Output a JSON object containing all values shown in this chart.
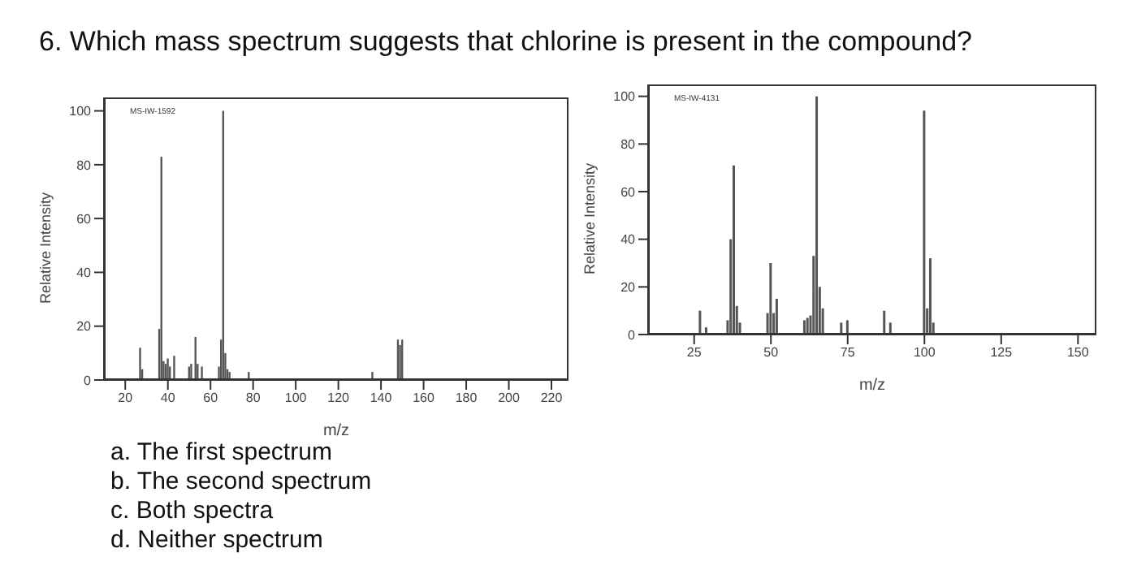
{
  "chart_data": [
    {
      "type": "bar",
      "title": "6. Which mass spectrum suggests that chlorine is present in the compound?",
      "xlabel": "m/z",
      "ylabel": "Relative Intensity",
      "annotations": [
        "MS-IW-1592",
        "a. The first spectrum",
        "b. The second spectrum",
        "c. Both spectra",
        "d. Neither spectrum"
      ],
      "x": [
        27,
        28,
        36,
        37,
        38,
        39,
        40,
        41,
        43,
        50,
        51,
        53,
        54,
        56,
        64,
        65,
        66,
        67,
        68,
        69,
        78,
        136,
        148,
        149,
        150
      ],
      "series": [
        {
          "color": "#555555",
          "values": [
            12,
            4,
            19,
            83,
            7,
            6,
            8,
            5,
            9,
            5,
            6,
            16,
            6,
            5,
            5,
            15,
            100,
            10,
            4,
            3,
            3,
            3,
            15,
            13,
            15
          ]
        }
      ],
      "xlim": [
        10,
        228
      ],
      "xticks": [
        20,
        40,
        60,
        80,
        100,
        120,
        140,
        160,
        180,
        200,
        220
      ],
      "ylim": [
        0,
        105
      ],
      "yticks": [
        0,
        20,
        40,
        60,
        80,
        100
      ],
      "grid": false
    },
    {
      "type": "bar",
      "xlabel": "m/z",
      "ylabel": "Relative Intensity",
      "annotations": [
        "MS-IW-4131"
      ],
      "x": [
        27,
        29,
        36,
        37,
        38,
        39,
        40,
        49,
        50,
        51,
        52,
        61,
        62,
        63,
        64,
        65,
        66,
        67,
        73,
        75,
        87,
        89,
        100,
        101,
        102,
        103
      ],
      "series": [
        {
          "color": "#555555",
          "values": [
            10,
            3,
            6,
            40,
            71,
            12,
            5,
            9,
            30,
            9,
            15,
            6,
            7,
            8,
            33,
            100,
            20,
            11,
            5,
            6,
            10,
            5,
            94,
            11,
            32,
            5
          ]
        }
      ],
      "xlim": [
        10,
        156
      ],
      "xticks": [
        25,
        50,
        75,
        100,
        125,
        150
      ],
      "ylim": [
        0,
        105
      ],
      "yticks": [
        0,
        20,
        40,
        60,
        80,
        100
      ],
      "grid": false
    }
  ]
}
